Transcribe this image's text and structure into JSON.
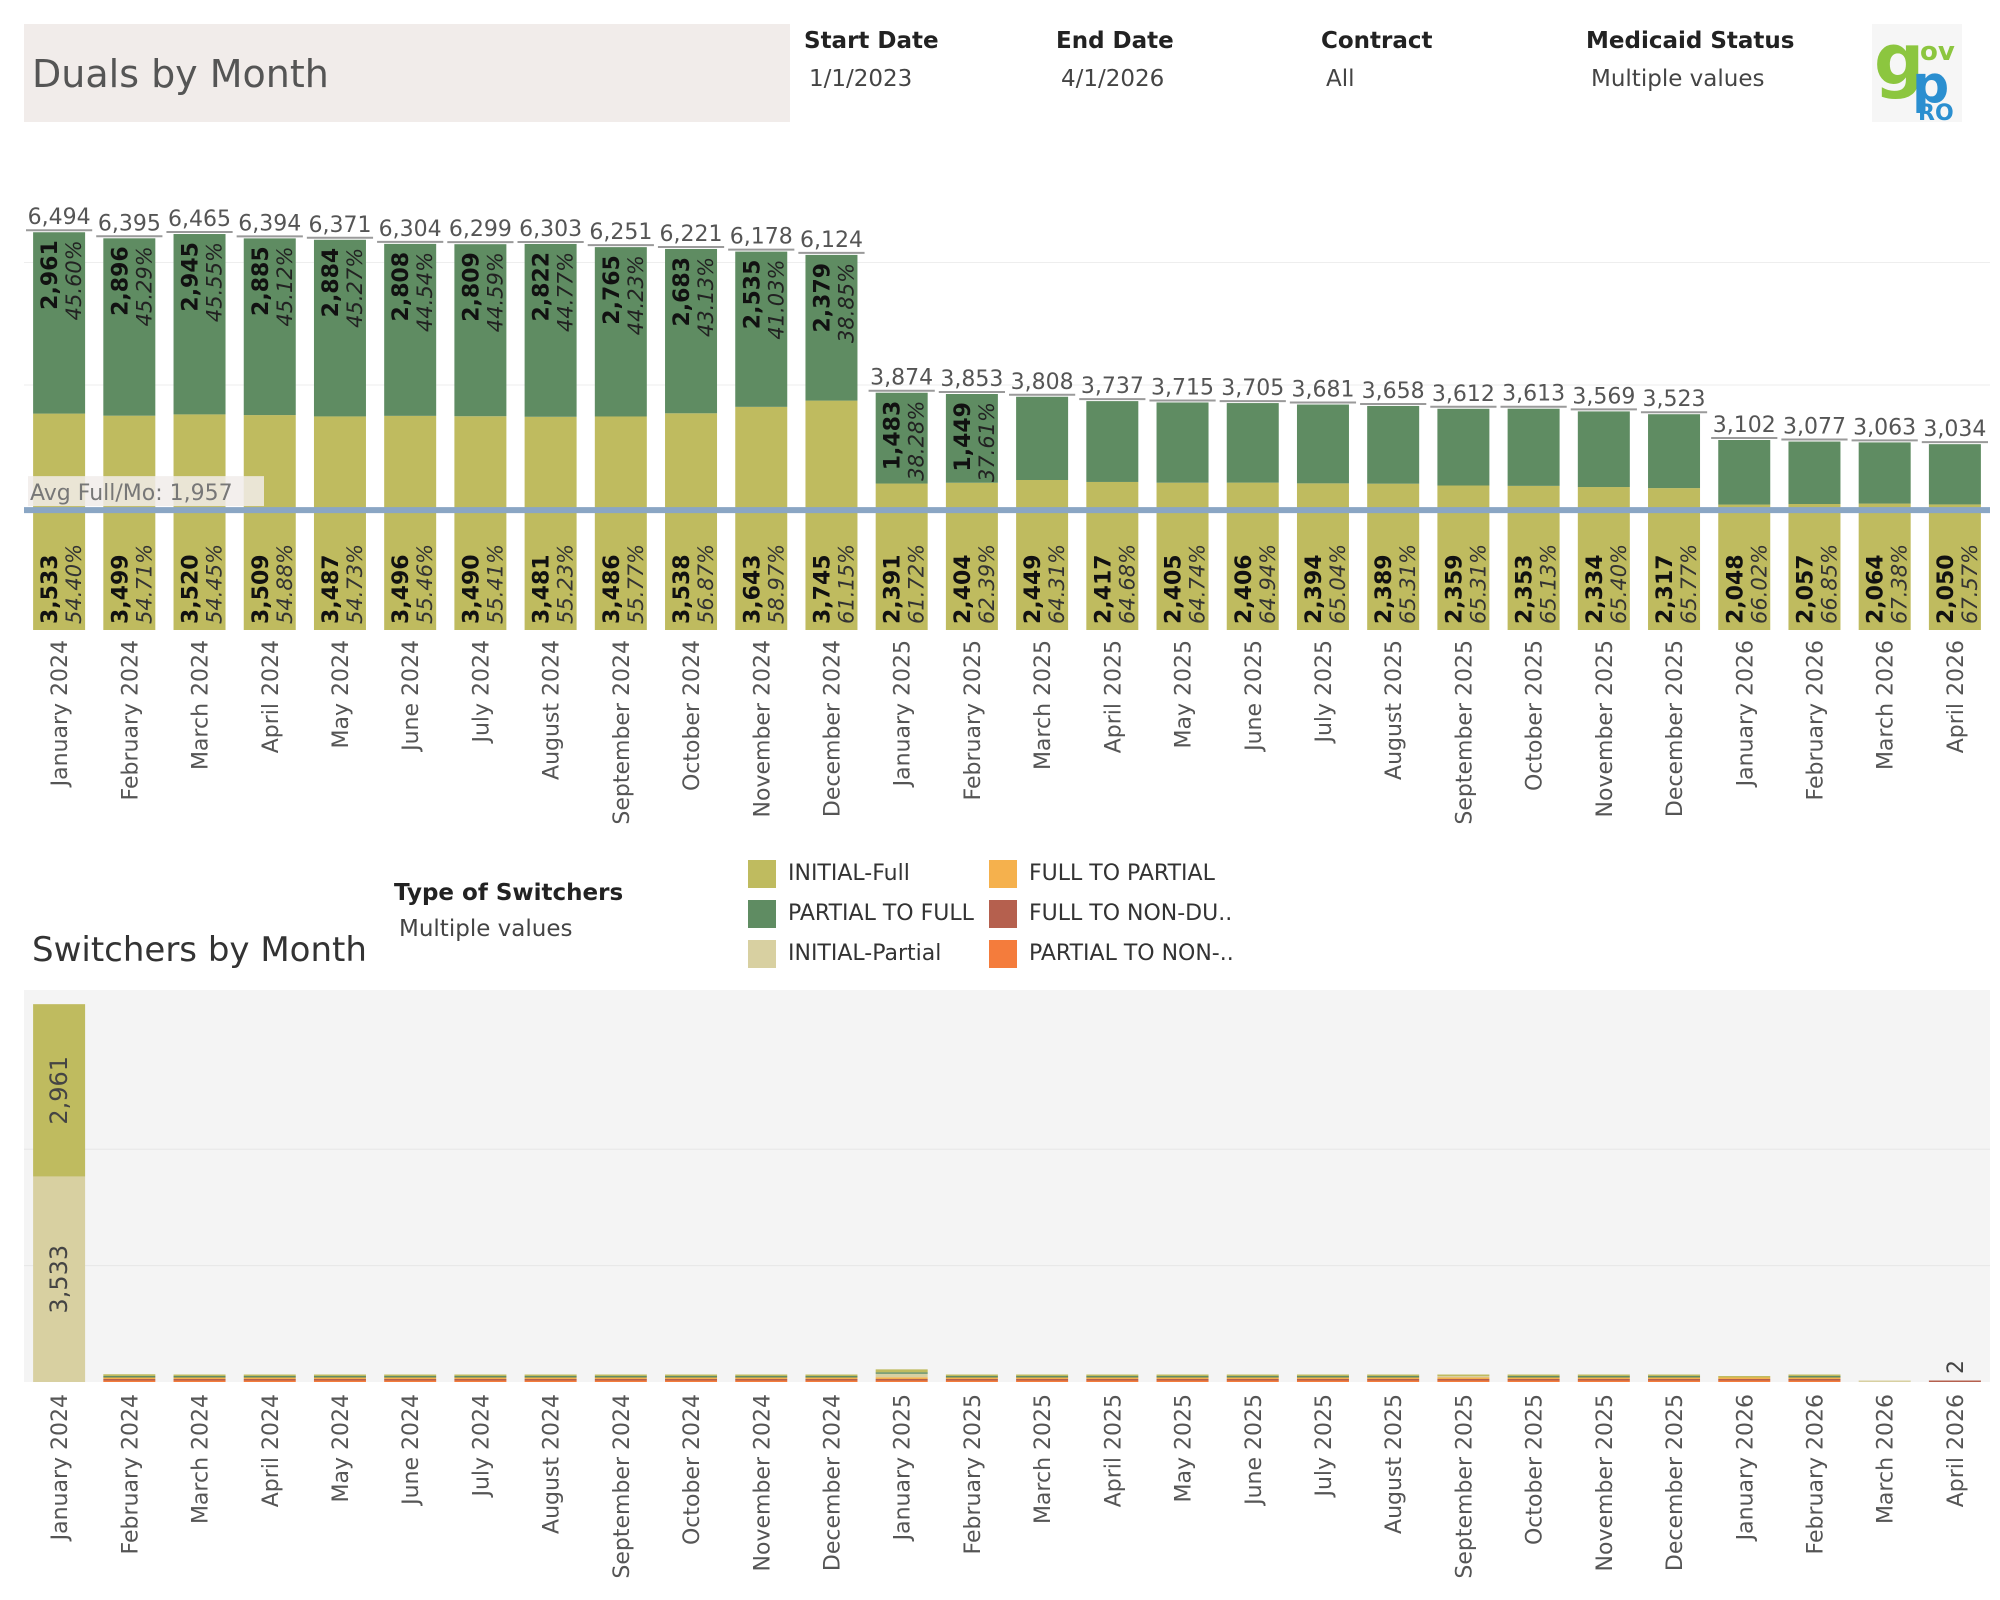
{
  "header": {
    "title": "Duals by Month",
    "filters": [
      {
        "label": "Start Date",
        "value": "1/1/2023"
      },
      {
        "label": "End Date",
        "value": "4/1/2026"
      },
      {
        "label": "Contract",
        "value": "All"
      },
      {
        "label": "Medicaid Status",
        "value": "Multiple values"
      }
    ],
    "logo_text": [
      "g",
      "ov",
      "p",
      "RO"
    ]
  },
  "colors": {
    "initial_full": "#bfbb5f",
    "partial_to_full": "#5f8c62",
    "initial_partial": "#d8d0a1",
    "full_to_partial": "#f5b14d",
    "full_to_non_dual": "#b5604e",
    "partial_to_non": "#f47c3c",
    "ref_line": "#8aa6c4",
    "logo_green": "#8cc63f",
    "logo_blue": "#2b8fd0"
  },
  "legend": {
    "items": [
      {
        "label": "INITIAL-Full",
        "color": "#bfbb5f"
      },
      {
        "label": "PARTIAL TO FULL",
        "color": "#5f8c62"
      },
      {
        "label": "INITIAL-Partial",
        "color": "#d8d0a1"
      },
      {
        "label": "FULL TO PARTIAL",
        "color": "#f5b14d"
      },
      {
        "label": "FULL TO NON-DU..",
        "color": "#b5604e"
      },
      {
        "label": "PARTIAL TO NON-..",
        "color": "#f47c3c"
      }
    ]
  },
  "type_of_switchers": {
    "label": "Type of Switchers",
    "value": "Multiple values"
  },
  "switchers_title": "Switchers by Month",
  "chart_data": [
    {
      "type": "bar",
      "title": "Duals by Month",
      "stacked": true,
      "categories": [
        "January 2024",
        "February 2024",
        "March 2024",
        "April 2024",
        "May 2024",
        "June 2024",
        "July 2024",
        "August 2024",
        "September 2024",
        "October 2024",
        "November 2024",
        "December 2024",
        "January 2025",
        "February 2025",
        "March 2025",
        "April 2025",
        "May 2025",
        "June 2025",
        "July 2025",
        "August 2025",
        "September 2025",
        "October 2025",
        "November 2025",
        "December 2025",
        "January 2026",
        "February 2026",
        "March 2026",
        "April 2026"
      ],
      "totals": [
        6494,
        6395,
        6465,
        6394,
        6371,
        6304,
        6299,
        6303,
        6251,
        6221,
        6178,
        6124,
        3874,
        3853,
        3808,
        3737,
        3715,
        3705,
        3681,
        3658,
        3612,
        3613,
        3569,
        3523,
        3102,
        3077,
        3063,
        3034
      ],
      "total_labels": [
        "6,494",
        "6,395",
        "6,465",
        "6,394",
        "6,371",
        "6,304",
        "6,299",
        "6,303",
        "6,251",
        "6,221",
        "6,178",
        "6,124",
        "3,874",
        "3,853",
        "3,808",
        "3,737",
        "3,715",
        "3,705",
        "3,681",
        "3,658",
        "3,612",
        "3,613",
        "3,569",
        "3,523",
        "3,102",
        "3,077",
        "3,063",
        "3,034"
      ],
      "series": [
        {
          "name": "INITIAL-Full",
          "values": [
            3533,
            3499,
            3520,
            3509,
            3487,
            3496,
            3490,
            3481,
            3486,
            3538,
            3643,
            3745,
            2391,
            2404,
            2449,
            2417,
            2405,
            2406,
            2394,
            2389,
            2359,
            2353,
            2334,
            2317,
            2048,
            2057,
            2064,
            2050
          ],
          "labels": [
            "3,533",
            "3,499",
            "3,520",
            "3,509",
            "3,487",
            "3,496",
            "3,490",
            "3,481",
            "3,486",
            "3,538",
            "3,643",
            "3,745",
            "2,391",
            "2,404",
            "2,449",
            "2,417",
            "2,405",
            "2,406",
            "2,394",
            "2,389",
            "2,359",
            "2,353",
            "2,334",
            "2,317",
            "2,048",
            "2,057",
            "2,064",
            "2,050"
          ],
          "pct_labels": [
            "54.40%",
            "54.71%",
            "54.45%",
            "54.88%",
            "54.73%",
            "55.46%",
            "55.41%",
            "55.23%",
            "55.77%",
            "56.87%",
            "58.97%",
            "61.15%",
            "61.72%",
            "62.39%",
            "64.31%",
            "64.68%",
            "64.74%",
            "64.94%",
            "65.04%",
            "65.31%",
            "65.31%",
            "65.13%",
            "65.40%",
            "65.77%",
            "66.02%",
            "66.85%",
            "67.38%",
            "67.57%"
          ]
        },
        {
          "name": "PARTIAL TO FULL",
          "values": [
            2961,
            2896,
            2945,
            2885,
            2884,
            2808,
            2809,
            2822,
            2765,
            2683,
            2535,
            2379,
            1483,
            1449,
            1359,
            1320,
            1310,
            1299,
            1287,
            1269,
            1253,
            1260,
            1235,
            1206,
            1054,
            1020,
            999,
            984
          ],
          "labels": [
            "2,961",
            "2,896",
            "2,945",
            "2,885",
            "2,884",
            "2,808",
            "2,809",
            "2,822",
            "2,765",
            "2,683",
            "2,535",
            "2,379",
            "1,483",
            "1,449",
            "",
            "",
            "",
            "",
            "",
            "",
            "",
            "",
            "",
            "",
            "",
            "",
            "",
            ""
          ],
          "pct_labels": [
            "45.60%",
            "45.29%",
            "45.55%",
            "45.12%",
            "45.27%",
            "44.54%",
            "44.59%",
            "44.77%",
            "44.23%",
            "43.13%",
            "41.03%",
            "38.85%",
            "38.28%",
            "37.61%",
            "",
            "",
            "",
            "",
            "",
            "",
            "",
            "",
            "",
            "",
            "",
            "",
            "",
            ""
          ]
        }
      ],
      "ylim": [
        0,
        8000
      ],
      "reference_line": {
        "label": "Avg Full/Mo: 1,957",
        "value": 1957
      },
      "grid": true
    },
    {
      "type": "bar",
      "title": "Switchers by Month",
      "stacked": true,
      "categories": [
        "January 2024",
        "February 2024",
        "March 2024",
        "April 2024",
        "May 2024",
        "June 2024",
        "July 2024",
        "August 2024",
        "September 2024",
        "October 2024",
        "November 2024",
        "December 2024",
        "January 2025",
        "February 2025",
        "March 2025",
        "April 2025",
        "May 2025",
        "June 2025",
        "July 2025",
        "August 2025",
        "September 2025",
        "October 2025",
        "November 2025",
        "December 2025",
        "January 2026",
        "February 2026",
        "March 2026",
        "April 2026"
      ],
      "series": [
        {
          "name": "INITIAL-Partial",
          "values": [
            3533,
            0,
            0,
            0,
            0,
            0,
            0,
            0,
            0,
            0,
            0,
            0,
            60,
            0,
            0,
            0,
            0,
            0,
            0,
            0,
            15,
            0,
            0,
            0,
            0,
            0,
            5,
            0
          ]
        },
        {
          "name": "INITIAL-Full",
          "values": [
            2961,
            30,
            25,
            25,
            25,
            20,
            25,
            20,
            20,
            22,
            25,
            25,
            50,
            20,
            20,
            18,
            12,
            12,
            12,
            12,
            18,
            12,
            12,
            12,
            22,
            14,
            0,
            0
          ]
        },
        {
          "name": "PARTIAL TO FULL",
          "values": [
            0,
            12,
            10,
            10,
            8,
            8,
            8,
            8,
            8,
            8,
            10,
            12,
            10,
            6,
            8,
            6,
            5,
            5,
            5,
            5,
            0,
            5,
            5,
            5,
            0,
            4,
            0,
            0
          ]
        },
        {
          "name": "FULL TO PARTIAL",
          "values": [
            0,
            25,
            20,
            20,
            15,
            15,
            12,
            12,
            18,
            12,
            22,
            25,
            30,
            12,
            10,
            10,
            5,
            5,
            5,
            5,
            10,
            5,
            5,
            10,
            10,
            5,
            0,
            0
          ]
        },
        {
          "name": "FULL TO NON-DUAL",
          "values": [
            0,
            20,
            15,
            15,
            10,
            12,
            10,
            8,
            10,
            12,
            15,
            20,
            10,
            8,
            10,
            8,
            5,
            5,
            5,
            5,
            5,
            5,
            5,
            8,
            8,
            5,
            0,
            2
          ]
        },
        {
          "name": "PARTIAL TO NON-DUAL",
          "values": [
            0,
            15,
            10,
            10,
            8,
            8,
            8,
            8,
            8,
            10,
            10,
            12,
            10,
            5,
            8,
            5,
            3,
            3,
            3,
            3,
            3,
            3,
            3,
            5,
            5,
            3,
            0,
            0
          ]
        }
      ],
      "value_labels": {
        "INITIAL-Full_January 2024": "2,961",
        "INITIAL-Partial_January 2024": "3,533",
        "April 2026": "2"
      },
      "ylim": [
        0,
        6600
      ],
      "grid": true
    }
  ]
}
